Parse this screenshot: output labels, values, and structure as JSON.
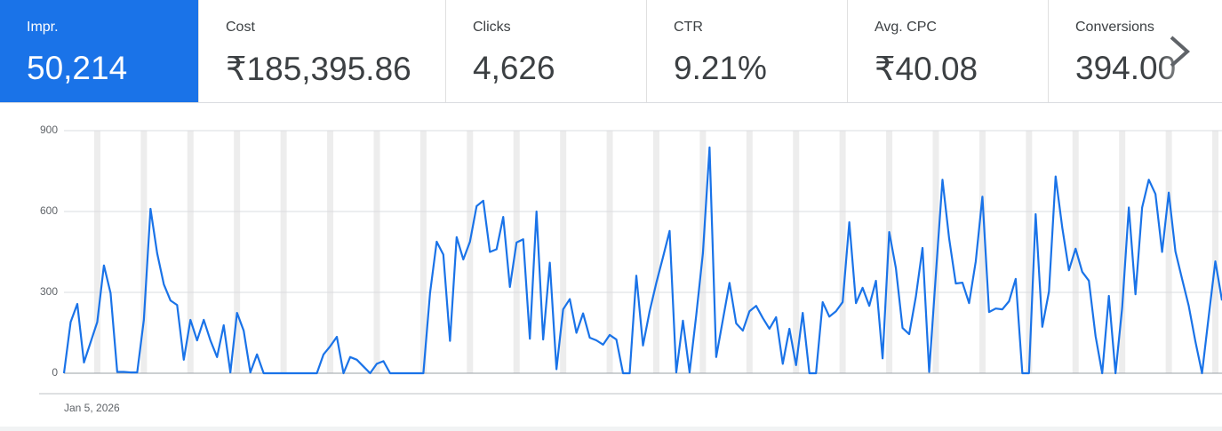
{
  "metrics": [
    {
      "label": "Impr.",
      "value": "50,214"
    },
    {
      "label": "Cost",
      "value": "₹185,395.86"
    },
    {
      "label": "Clicks",
      "value": "4,626"
    },
    {
      "label": "CTR",
      "value": "9.21%"
    },
    {
      "label": "Avg. CPC",
      "value": "₹40.08"
    },
    {
      "label": "Conversions",
      "value": "394.00"
    }
  ],
  "chart_data": {
    "type": "line",
    "color": "#1a73e8",
    "grid": true,
    "ylim": [
      0,
      900
    ],
    "yticks": [
      0,
      300,
      600,
      900
    ],
    "categories": [
      "Jan 5, 2026",
      null,
      null,
      null,
      null,
      null,
      null,
      null,
      null,
      null,
      null,
      null,
      null,
      null,
      null,
      null,
      null,
      null,
      null,
      null,
      null,
      null,
      null,
      null,
      null,
      null,
      null,
      null,
      null,
      null,
      null,
      null,
      null,
      null,
      null,
      null,
      null,
      null,
      null,
      null,
      null,
      null,
      null,
      null,
      null,
      null,
      null,
      null,
      null,
      null,
      null,
      null,
      null,
      null,
      null,
      null,
      null,
      null,
      null,
      null,
      null,
      null,
      null,
      null,
      null,
      null,
      null,
      null,
      null,
      null,
      null,
      null,
      null,
      null,
      null,
      null,
      null,
      null,
      null,
      null,
      null,
      null,
      null,
      null,
      null,
      null,
      null,
      null,
      null,
      null,
      null,
      null,
      null,
      null,
      null,
      null,
      null,
      null,
      null,
      null,
      null,
      null,
      null,
      null,
      null,
      null,
      null,
      null,
      null,
      null,
      null,
      null,
      null,
      null,
      null,
      null,
      null,
      null,
      null,
      null,
      null,
      null,
      null,
      null,
      null,
      null,
      null,
      null,
      null,
      null,
      null,
      null,
      null,
      null,
      null,
      null,
      null,
      null,
      null,
      null,
      null,
      null,
      null,
      null,
      null,
      null,
      null,
      null,
      null,
      null,
      null,
      null,
      null,
      null,
      null,
      null,
      null,
      null,
      null,
      null,
      null,
      null,
      null,
      null,
      null,
      null,
      null,
      null,
      null,
      null,
      null,
      null,
      null,
      null,
      null
    ],
    "values": [
      0,
      190,
      257,
      40,
      115,
      190,
      400,
      297,
      5,
      5,
      3,
      3,
      198,
      610,
      445,
      330,
      270,
      253,
      50,
      198,
      122,
      198,
      122,
      60,
      178,
      3,
      224,
      158,
      3,
      70,
      0,
      0,
      0,
      0,
      0,
      0,
      0,
      0,
      0,
      70,
      100,
      135,
      0,
      60,
      50,
      25,
      0,
      35,
      45,
      0,
      0,
      0,
      0,
      0,
      0,
      297,
      488,
      440,
      120,
      505,
      422,
      488,
      620,
      640,
      450,
      460,
      580,
      320,
      485,
      497,
      128,
      600,
      125,
      410,
      15,
      237,
      275,
      150,
      222,
      132,
      122,
      106,
      142,
      125,
      0,
      0,
      362,
      103,
      230,
      335,
      430,
      528,
      3,
      195,
      3,
      215,
      445,
      838,
      60,
      198,
      335,
      185,
      158,
      230,
      250,
      205,
      165,
      208,
      35,
      165,
      30,
      224,
      0,
      0,
      264,
      210,
      230,
      264,
      560,
      260,
      317,
      250,
      343,
      55,
      524,
      390,
      168,
      145,
      284,
      465,
      5,
      365,
      718,
      500,
      333,
      336,
      260,
      415,
      655,
      227,
      240,
      237,
      267,
      350,
      0,
      0,
      590,
      172,
      303,
      730,
      540,
      382,
      462,
      376,
      343,
      138,
      0,
      287,
      0,
      243,
      615,
      293,
      615,
      718,
      665,
      450,
      670,
      452,
      350,
      250,
      118,
      0,
      210,
      415,
      270
    ]
  }
}
